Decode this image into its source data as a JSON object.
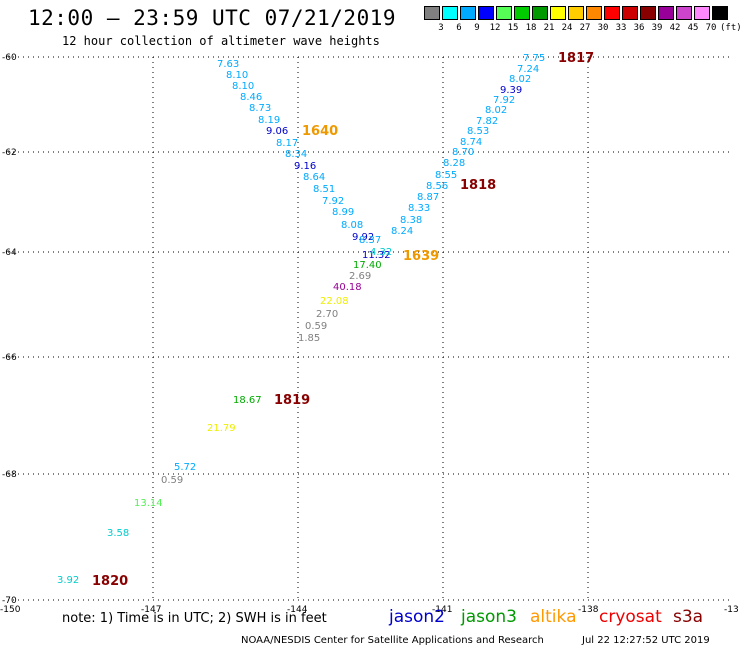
{
  "header": {
    "title": "12:00 – 23:59 UTC 07/21/2019",
    "subtitle": "12 hour collection of altimeter wave heights"
  },
  "colorbar": {
    "colors": [
      "#808080",
      "#00ffff",
      "#00aaff",
      "#0000ff",
      "#55ff55",
      "#00cc00",
      "#009900",
      "#ffff00",
      "#ffcc00",
      "#ff8800",
      "#ff0000",
      "#cc0000",
      "#880000",
      "#990099",
      "#cc44cc",
      "#ff88ff",
      "#000000"
    ],
    "labels": [
      "3",
      "6",
      "9",
      "12",
      "15",
      "18",
      "21",
      "24",
      "27",
      "30",
      "33",
      "36",
      "39",
      "42",
      "45",
      "70"
    ],
    "unit": "(ft)"
  },
  "axes": {
    "lat_ticks": [
      "-60",
      "-62",
      "-64",
      "-66",
      "-68",
      "-70"
    ],
    "lon_ticks": [
      "-150",
      "-147",
      "-144",
      "-141",
      "-138",
      "-13"
    ]
  },
  "points": [
    {
      "text": "7.63",
      "color": "#00aaff"
    },
    {
      "text": "8.10",
      "color": "#00aaff"
    },
    {
      "text": "8.10",
      "color": "#00aaff"
    },
    {
      "text": "8.46",
      "color": "#00aaff"
    },
    {
      "text": "8.73",
      "color": "#00aaff"
    },
    {
      "text": "8.19",
      "color": "#00aaff"
    },
    {
      "text": "9.06",
      "color": "#0000cc"
    },
    {
      "text": "8.17",
      "color": "#00aaff"
    },
    {
      "text": "8.34",
      "color": "#00aaff"
    },
    {
      "text": "9.16",
      "color": "#0000cc"
    },
    {
      "text": "8.64",
      "color": "#00aaff"
    },
    {
      "text": "8.51",
      "color": "#00aaff"
    },
    {
      "text": "7.92",
      "color": "#00aaff"
    },
    {
      "text": "8.99",
      "color": "#00aaff"
    },
    {
      "text": "8.08",
      "color": "#00aaff"
    },
    {
      "text": "9.92",
      "color": "#0000cc"
    },
    {
      "text": "8.37",
      "color": "#00aaff"
    },
    {
      "text": "11.32",
      "color": "#0000cc"
    },
    {
      "text": "4.32",
      "color": "#00cccc"
    },
    {
      "text": "17.40",
      "color": "#00aa00"
    },
    {
      "text": "2.69",
      "color": "#808080"
    },
    {
      "text": "40.18",
      "color": "#990099"
    },
    {
      "text": "22.08",
      "color": "#eeee00"
    },
    {
      "text": "2.70",
      "color": "#808080"
    },
    {
      "text": "0.59",
      "color": "#808080"
    },
    {
      "text": "1.85",
      "color": "#808080"
    },
    {
      "text": "18.67",
      "color": "#00aa00"
    },
    {
      "text": "21.79",
      "color": "#eeee00"
    },
    {
      "text": "5.72",
      "color": "#00aaff"
    },
    {
      "text": "0.59",
      "color": "#808080"
    },
    {
      "text": "13.14",
      "color": "#55ee55"
    },
    {
      "text": "3.58",
      "color": "#00cccc"
    },
    {
      "text": "3.92",
      "color": "#00cccc"
    },
    {
      "text": "7.75",
      "color": "#00aaff"
    },
    {
      "text": "7.24",
      "color": "#00aaff"
    },
    {
      "text": "8.02",
      "color": "#00aaff"
    },
    {
      "text": "9.39",
      "color": "#0000cc"
    },
    {
      "text": "7.92",
      "color": "#00aaff"
    },
    {
      "text": "8.02",
      "color": "#00aaff"
    },
    {
      "text": "7.82",
      "color": "#00aaff"
    },
    {
      "text": "8.53",
      "color": "#00aaff"
    },
    {
      "text": "8.74",
      "color": "#00aaff"
    },
    {
      "text": "8.70",
      "color": "#00aaff"
    },
    {
      "text": "8.28",
      "color": "#00aaff"
    },
    {
      "text": "8.55",
      "color": "#00aaff"
    },
    {
      "text": "8.56",
      "color": "#00aaff"
    },
    {
      "text": "8.87",
      "color": "#00aaff"
    },
    {
      "text": "8.33",
      "color": "#00aaff"
    },
    {
      "text": "8.38",
      "color": "#00aaff"
    },
    {
      "text": "8.24",
      "color": "#00aaff"
    }
  ],
  "pass_times": [
    {
      "text": "1817",
      "color": "#880000"
    },
    {
      "text": "1640",
      "color": "#ee9900"
    },
    {
      "text": "1818",
      "color": "#880000"
    },
    {
      "text": "1639",
      "color": "#ee9900"
    },
    {
      "text": "1819",
      "color": "#880000"
    },
    {
      "text": "1820",
      "color": "#880000"
    }
  ],
  "note": "note:  1) Time is in UTC;  2) SWH is in feet",
  "legend": [
    {
      "text": "jason2",
      "color": "#0000cc"
    },
    {
      "text": "jason3",
      "color": "#009900"
    },
    {
      "text": "altika",
      "color": "#ff9900"
    },
    {
      "text": "cryosat",
      "color": "#ee0000"
    },
    {
      "text": "s3a",
      "color": "#880000"
    }
  ],
  "footer": {
    "agency": "NOAA/NESDIS Center for Satellite Applications and Research",
    "timestamp": "Jul 22 12:27:52 UTC 2019"
  }
}
